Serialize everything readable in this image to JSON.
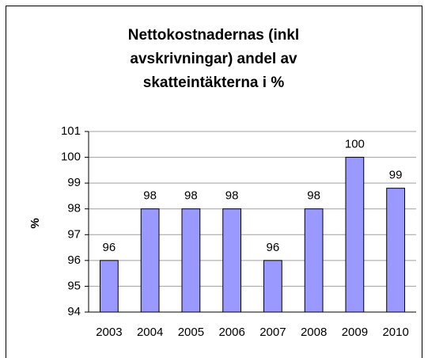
{
  "chart_data": {
    "type": "bar",
    "title": [
      "Nettokostnadernas (inkl",
      "avskrivningar) andel av",
      "skatteintäkterna i %"
    ],
    "y_label": "%",
    "categories": [
      "2003",
      "2004",
      "2005",
      "2006",
      "2007",
      "2008",
      "2009",
      "2010"
    ],
    "values": [
      96,
      98,
      98,
      98,
      96,
      98,
      100,
      98.8
    ],
    "value_labels": [
      "96",
      "98",
      "98",
      "98",
      "96",
      "98",
      "100",
      "99"
    ],
    "color": "#9999ff",
    "ylim": [
      94,
      101
    ],
    "yticks": [
      94,
      95,
      96,
      97,
      98,
      99,
      100,
      101
    ],
    "grid": true
  }
}
